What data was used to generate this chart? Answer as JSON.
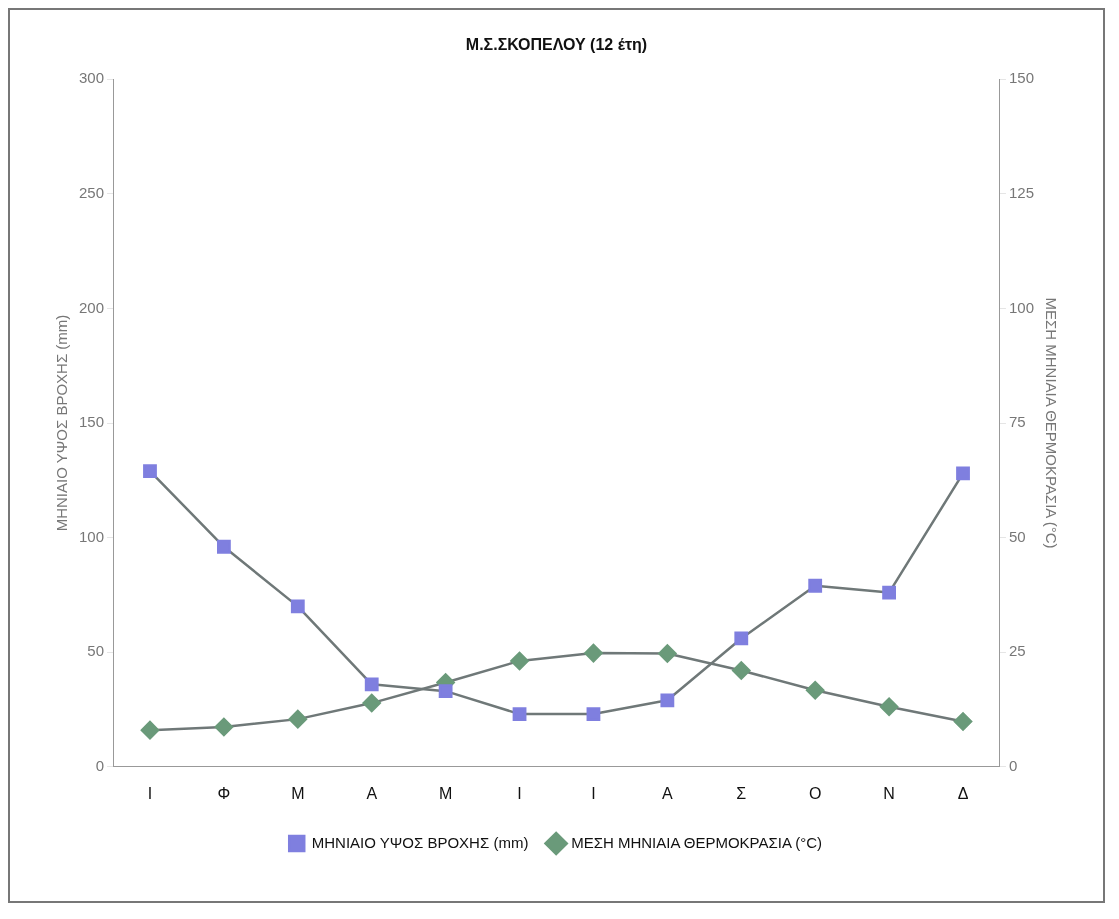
{
  "chart_data": {
    "type": "line",
    "title": "Μ.Σ.ΣΚΟΠΕΛΟΥ (12 έτη)",
    "ylabel": "ΜΗΝΙΑΙΟ ΥΨΟΣ ΒΡΟΧΗΣ (mm)",
    "y2label": "ΜΕΣΗ ΜΗΝΙΑΙΑ ΘΕΡΜΟΚΡΑΣΙΑ (°C)",
    "categories": [
      "Ι",
      "Φ",
      "Μ",
      "Α",
      "Μ",
      "Ι",
      "Ι",
      "Α",
      "Σ",
      "Ο",
      "Ν",
      "Δ"
    ],
    "series": [
      {
        "name": "ΜΗΝΙΑΙΟ ΥΨΟΣ ΒΡΟΧΗΣ (mm)",
        "color": "#7f7fdf",
        "marker": "square",
        "values": [
          129,
          96,
          70,
          36,
          33,
          23,
          23,
          29,
          56,
          79,
          76,
          128
        ]
      },
      {
        "name": "ΜΕΣΗ ΜΗΝΙΑΙΑ ΘΕΡΜΟΚΡΑΣΙΑ (°C)",
        "color": "#6a9a7a",
        "marker": "diamond",
        "axis": "y2",
        "values": [
          8.0,
          8.7,
          10.4,
          13.9,
          18.4,
          23.1,
          24.8,
          24.7,
          21.0,
          16.7,
          13.1,
          9.9
        ]
      }
    ],
    "ylim": [
      0,
      300
    ],
    "yticks": [
      0,
      50,
      100,
      150,
      200,
      250,
      300
    ],
    "y2lim": [
      0,
      150
    ],
    "y2ticks": [
      0,
      25,
      50,
      75,
      100,
      125,
      150
    ],
    "grid": false,
    "legend": "bottom",
    "line_style": "solid"
  }
}
